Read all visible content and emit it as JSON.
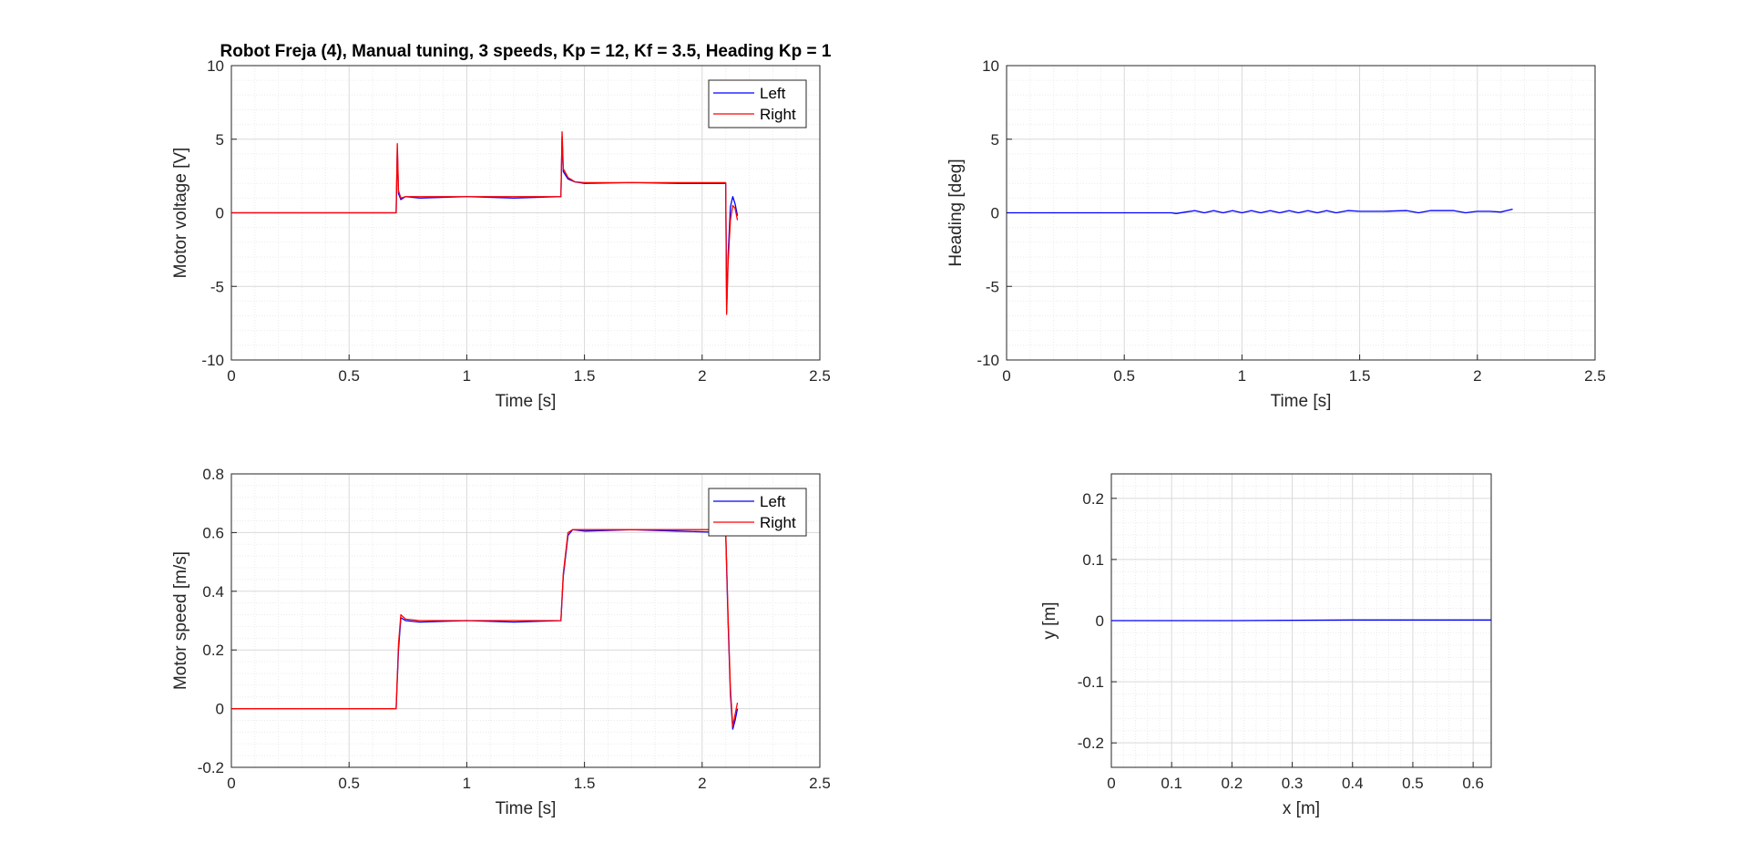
{
  "colors": {
    "left": "#0000ff",
    "right": "#ff0000",
    "grid_major": "#d9d9d9",
    "grid_minor": "#ebebeb",
    "axis": "#262626"
  },
  "chart_data": [
    {
      "type": "line",
      "title": "Robot Freja (4), Manual tuning, 3 speeds, Kp = 12, Kf = 3.5, Heading Kp = 1",
      "xlabel": "Time [s]",
      "ylabel": "Motor voltage [V]",
      "xlim": [
        0,
        2.5
      ],
      "ylim": [
        -10,
        10
      ],
      "xticks": [
        0,
        0.5,
        1,
        1.5,
        2,
        2.5
      ],
      "xtick_labels": [
        "0",
        "0.5",
        "1",
        "1.5",
        "2",
        "2.5"
      ],
      "yticks": [
        -10,
        -5,
        0,
        5,
        10
      ],
      "ytick_labels": [
        "-10",
        "-5",
        "0",
        "5",
        "10"
      ],
      "grid": true,
      "legend": "top-right",
      "series": [
        {
          "name": "Left",
          "color": "#0000ff",
          "x": [
            0,
            0.7,
            0.705,
            0.71,
            0.72,
            0.74,
            0.8,
            1.0,
            1.2,
            1.4,
            1.405,
            1.41,
            1.43,
            1.46,
            1.5,
            1.7,
            1.9,
            2.1,
            2.102,
            2.104,
            2.11,
            2.12,
            2.13,
            2.14,
            2.15
          ],
          "y": [
            0,
            0,
            4.4,
            1.3,
            0.9,
            1.1,
            1.0,
            1.1,
            1.0,
            1.1,
            5.2,
            2.8,
            2.3,
            2.1,
            2.0,
            2.05,
            2.0,
            2.0,
            -2.0,
            -6.7,
            -3.0,
            0.4,
            1.1,
            0.6,
            -0.2
          ]
        },
        {
          "name": "Right",
          "color": "#ff0000",
          "x": [
            0,
            0.7,
            0.705,
            0.71,
            0.72,
            0.74,
            0.8,
            1.0,
            1.2,
            1.4,
            1.405,
            1.41,
            1.43,
            1.46,
            1.5,
            1.7,
            1.9,
            2.1,
            2.102,
            2.104,
            2.11,
            2.12,
            2.13,
            2.14,
            2.15
          ],
          "y": [
            0,
            0,
            4.7,
            1.5,
            1.0,
            1.1,
            1.1,
            1.1,
            1.1,
            1.1,
            5.5,
            3.0,
            2.4,
            2.1,
            2.05,
            2.05,
            2.05,
            2.05,
            -2.5,
            -6.9,
            -3.5,
            -0.5,
            0.5,
            0.3,
            -0.5
          ]
        }
      ]
    },
    {
      "type": "line",
      "title": "",
      "xlabel": "Time [s]",
      "ylabel": "Heading [deg]",
      "xlim": [
        0,
        2.5
      ],
      "ylim": [
        -10,
        10
      ],
      "xticks": [
        0,
        0.5,
        1,
        1.5,
        2,
        2.5
      ],
      "xtick_labels": [
        "0",
        "0.5",
        "1",
        "1.5",
        "2",
        "2.5"
      ],
      "yticks": [
        -10,
        -5,
        0,
        5,
        10
      ],
      "ytick_labels": [
        "-10",
        "-5",
        "0",
        "5",
        "10"
      ],
      "grid": true,
      "series": [
        {
          "color": "#0000ff",
          "x": [
            0,
            0.7,
            0.72,
            0.76,
            0.8,
            0.84,
            0.88,
            0.92,
            0.96,
            1.0,
            1.04,
            1.08,
            1.12,
            1.16,
            1.2,
            1.24,
            1.28,
            1.32,
            1.36,
            1.4,
            1.45,
            1.5,
            1.6,
            1.7,
            1.75,
            1.8,
            1.9,
            1.95,
            2.0,
            2.05,
            2.1,
            2.15
          ],
          "y": [
            0,
            0,
            -0.05,
            0.05,
            0.15,
            0.0,
            0.15,
            0.0,
            0.15,
            0.0,
            0.15,
            0.0,
            0.15,
            0.0,
            0.15,
            0.0,
            0.15,
            0.0,
            0.15,
            0.0,
            0.15,
            0.1,
            0.1,
            0.15,
            0.0,
            0.15,
            0.15,
            0.0,
            0.1,
            0.1,
            0.05,
            0.25
          ]
        }
      ]
    },
    {
      "type": "line",
      "title": "",
      "xlabel": "Time [s]",
      "ylabel": "Motor speed [m/s]",
      "xlim": [
        0,
        2.5
      ],
      "ylim": [
        -0.2,
        0.8
      ],
      "xticks": [
        0,
        0.5,
        1,
        1.5,
        2,
        2.5
      ],
      "xtick_labels": [
        "0",
        "0.5",
        "1",
        "1.5",
        "2",
        "2.5"
      ],
      "yticks": [
        -0.2,
        0,
        0.2,
        0.4,
        0.6,
        0.8
      ],
      "ytick_labels": [
        "-0.2",
        "0",
        "0.2",
        "0.4",
        "0.6",
        "0.8"
      ],
      "grid": true,
      "legend": "top-right",
      "series": [
        {
          "name": "Left",
          "color": "#0000ff",
          "x": [
            0,
            0.7,
            0.71,
            0.72,
            0.74,
            0.8,
            1.0,
            1.2,
            1.4,
            1.41,
            1.43,
            1.45,
            1.5,
            1.7,
            1.9,
            2.1,
            2.11,
            2.12,
            2.13,
            2.14,
            2.15
          ],
          "y": [
            0,
            0,
            0.2,
            0.31,
            0.3,
            0.295,
            0.3,
            0.295,
            0.3,
            0.45,
            0.59,
            0.61,
            0.605,
            0.61,
            0.605,
            0.6,
            0.3,
            0.05,
            -0.07,
            -0.04,
            0.0
          ]
        },
        {
          "name": "Right",
          "color": "#ff0000",
          "x": [
            0,
            0.7,
            0.71,
            0.72,
            0.74,
            0.8,
            1.0,
            1.2,
            1.4,
            1.41,
            1.43,
            1.45,
            1.5,
            1.7,
            1.9,
            2.1,
            2.11,
            2.12,
            2.13,
            2.14,
            2.15
          ],
          "y": [
            0,
            0,
            0.22,
            0.32,
            0.305,
            0.3,
            0.3,
            0.3,
            0.3,
            0.46,
            0.6,
            0.61,
            0.61,
            0.61,
            0.61,
            0.61,
            0.32,
            0.07,
            -0.06,
            -0.02,
            0.02
          ]
        }
      ]
    },
    {
      "type": "line",
      "title": "",
      "xlabel": "x [m]",
      "ylabel": "y [m]",
      "xlim": [
        0,
        0.63
      ],
      "ylim": [
        -0.24,
        0.24
      ],
      "xticks": [
        0,
        0.1,
        0.2,
        0.3,
        0.4,
        0.5,
        0.6
      ],
      "xtick_labels": [
        "0",
        "0.1",
        "0.2",
        "0.3",
        "0.4",
        "0.5",
        "0.6"
      ],
      "yticks": [
        -0.2,
        -0.1,
        0,
        0.1,
        0.2
      ],
      "ytick_labels": [
        "-0.2",
        "-0.1",
        "0",
        "0.1",
        "0.2"
      ],
      "grid": true,
      "series": [
        {
          "color": "#0000ff",
          "x": [
            0,
            0.2,
            0.4,
            0.63
          ],
          "y": [
            0,
            0,
            0.001,
            0.001
          ]
        }
      ]
    }
  ]
}
